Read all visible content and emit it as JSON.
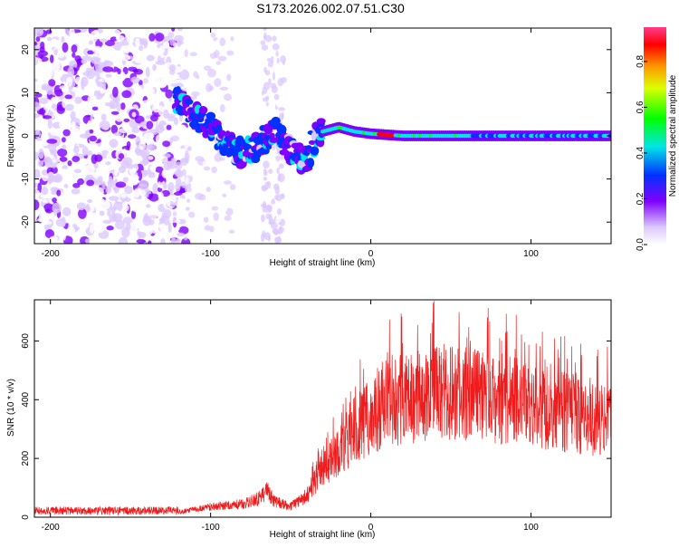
{
  "title": "S173.2026.002.07.51.C30",
  "chart_data": [
    {
      "type": "heatmap",
      "name": "spectrogram",
      "xlabel": "Height of straight line (km)",
      "ylabel": "Frequency (Hz)",
      "xlim": [
        -210,
        150
      ],
      "ylim": [
        -25,
        25
      ],
      "xticks": [
        -200,
        -100,
        0,
        100
      ],
      "yticks": [
        -20,
        -10,
        0,
        10,
        20
      ],
      "colorbar": {
        "label": "Normalized spectral amplitude",
        "range": [
          0,
          0.95
        ],
        "ticks": [
          0.0,
          0.2,
          0.4,
          0.6,
          0.8
        ]
      },
      "ridge": {
        "x": [
          -120,
          -110,
          -100,
          -90,
          -80,
          -70,
          -60,
          -50,
          -40,
          -35,
          -30,
          -20,
          -10,
          0,
          20,
          50,
          100,
          150
        ],
        "y": [
          8,
          5,
          2,
          -2,
          -4,
          -2,
          1,
          -4,
          -6,
          -1,
          1,
          2,
          1,
          0.5,
          0,
          0,
          0,
          0
        ]
      },
      "peak": {
        "x": [
          5,
          15
        ],
        "y": 0,
        "value": 0.95
      }
    },
    {
      "type": "line",
      "name": "snr",
      "xlabel": "Height of straight line (km)",
      "ylabel": "SNR (10 * v/v)",
      "xlim": [
        -210,
        150
      ],
      "ylim": [
        0,
        740
      ],
      "xticks": [
        -200,
        -100,
        0,
        100
      ],
      "yticks": [
        0,
        200,
        400,
        600
      ],
      "color": "#ee1c1c",
      "envelope": {
        "x": [
          -210,
          -150,
          -120,
          -100,
          -80,
          -70,
          -65,
          -60,
          -50,
          -40,
          -30,
          -20,
          -10,
          0,
          10,
          20,
          30,
          40,
          50,
          60,
          80,
          100,
          120,
          140,
          150
        ],
        "y": [
          20,
          20,
          20,
          40,
          50,
          70,
          100,
          60,
          40,
          80,
          180,
          250,
          330,
          380,
          420,
          440,
          460,
          470,
          470,
          465,
          450,
          430,
          400,
          370,
          380
        ]
      }
    }
  ]
}
